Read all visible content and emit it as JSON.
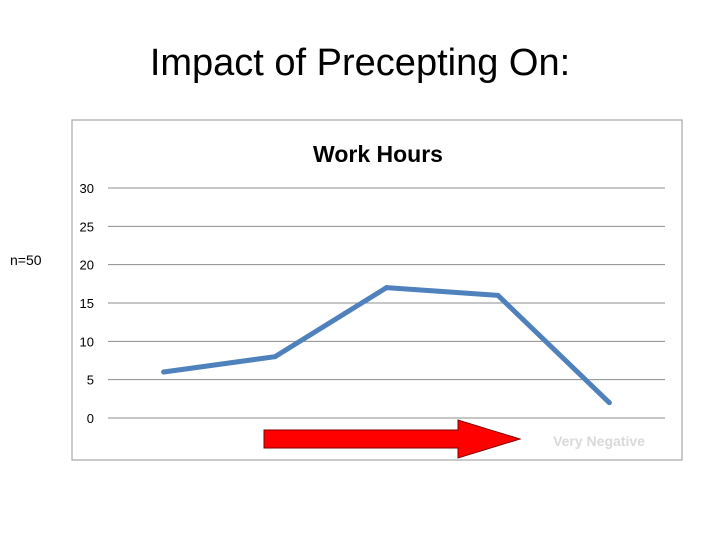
{
  "slide": {
    "title": "Impact of Precepting On:",
    "sample_label": "n=50"
  },
  "chart_data": {
    "type": "line",
    "title": "Work Hours",
    "x": [
      1,
      2,
      3,
      4,
      5
    ],
    "series": [
      {
        "values": [
          6,
          8,
          17,
          16,
          2
        ],
        "color": "#4f81bd"
      }
    ],
    "ylim": [
      0,
      30
    ],
    "yticks": [
      0,
      5,
      10,
      15,
      20,
      25,
      30
    ],
    "grid": true,
    "annotation": "Very Negative",
    "arrow_color": "#ff0000"
  }
}
